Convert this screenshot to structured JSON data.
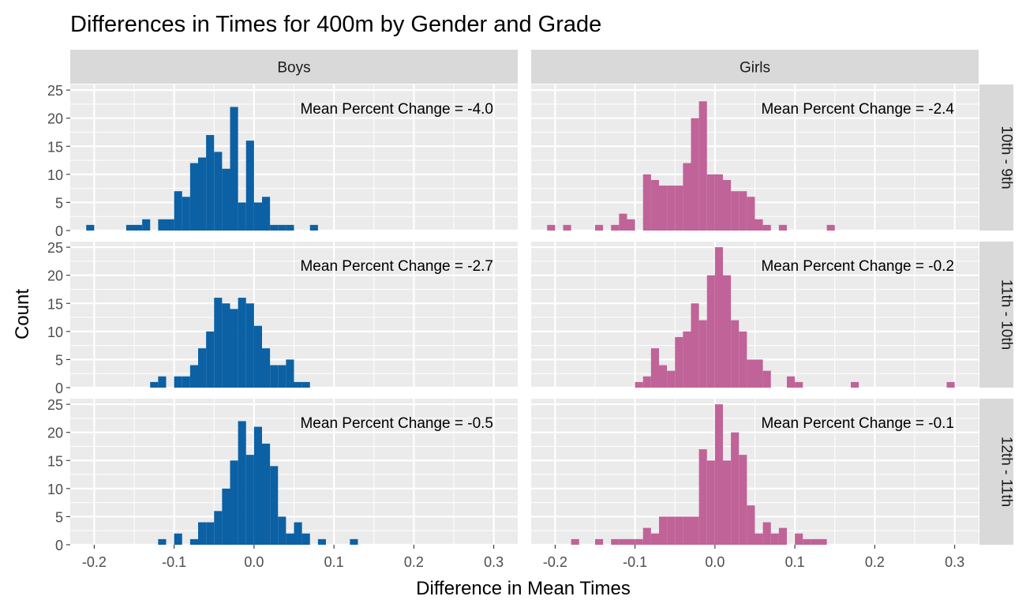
{
  "chart_data": {
    "type": "bar",
    "subtype": "faceted-histogram",
    "title": "Differences in Times for 400m by Gender and Grade",
    "xlabel": "Difference in Mean Times",
    "ylabel": "Count",
    "xlim": [
      -0.23,
      0.33
    ],
    "ylim": [
      0,
      26
    ],
    "x_ticks": [
      -0.2,
      -0.1,
      0.0,
      0.1,
      0.2,
      0.3
    ],
    "x_tick_labels": [
      "-0.2",
      "-0.1",
      "0.0",
      "0.1",
      "0.2",
      "0.3"
    ],
    "y_ticks": [
      0,
      5,
      10,
      15,
      20,
      25
    ],
    "y_tick_labels": [
      "0",
      "5",
      "10",
      "15",
      "20",
      "25"
    ],
    "bin_width": 0.01,
    "grid": true,
    "legend": "none",
    "columns": [
      "Boys",
      "Girls"
    ],
    "rows": [
      "10th - 9th",
      "11th - 10th",
      "12th - 11th"
    ],
    "colors": {
      "Boys": "#0B61A4",
      "Girls": "#C06398"
    },
    "panels": [
      {
        "column": "Boys",
        "row": "10th - 9th",
        "annotation": "Mean Percent Change = -4.0",
        "bins": [
          [
            -0.205,
            1
          ],
          [
            -0.155,
            1
          ],
          [
            -0.145,
            1
          ],
          [
            -0.135,
            2
          ],
          [
            -0.115,
            2
          ],
          [
            -0.105,
            2
          ],
          [
            -0.095,
            7
          ],
          [
            -0.085,
            6
          ],
          [
            -0.075,
            12
          ],
          [
            -0.065,
            13
          ],
          [
            -0.055,
            17
          ],
          [
            -0.045,
            14
          ],
          [
            -0.035,
            11
          ],
          [
            -0.025,
            22
          ],
          [
            -0.015,
            5
          ],
          [
            -0.005,
            16
          ],
          [
            0.005,
            5
          ],
          [
            0.015,
            6
          ],
          [
            0.025,
            1
          ],
          [
            0.035,
            1
          ],
          [
            0.045,
            1
          ],
          [
            0.075,
            1
          ]
        ]
      },
      {
        "column": "Girls",
        "row": "10th - 9th",
        "annotation": "Mean Percent Change = -2.4",
        "bins": [
          [
            -0.205,
            1
          ],
          [
            -0.185,
            1
          ],
          [
            -0.145,
            1
          ],
          [
            -0.125,
            1
          ],
          [
            -0.115,
            3
          ],
          [
            -0.105,
            2
          ],
          [
            -0.085,
            10
          ],
          [
            -0.075,
            9
          ],
          [
            -0.065,
            8
          ],
          [
            -0.055,
            8
          ],
          [
            -0.045,
            8
          ],
          [
            -0.035,
            12
          ],
          [
            -0.025,
            20
          ],
          [
            -0.015,
            23
          ],
          [
            -0.005,
            10
          ],
          [
            0.005,
            10
          ],
          [
            0.015,
            9
          ],
          [
            0.025,
            7
          ],
          [
            0.035,
            7
          ],
          [
            0.045,
            6
          ],
          [
            0.055,
            2
          ],
          [
            0.065,
            1
          ],
          [
            0.085,
            1
          ],
          [
            0.145,
            1
          ]
        ]
      },
      {
        "column": "Boys",
        "row": "11th - 10th",
        "annotation": "Mean Percent Change = -2.7",
        "bins": [
          [
            -0.125,
            1
          ],
          [
            -0.115,
            2
          ],
          [
            -0.095,
            2
          ],
          [
            -0.085,
            2
          ],
          [
            -0.075,
            4
          ],
          [
            -0.065,
            7
          ],
          [
            -0.055,
            10
          ],
          [
            -0.045,
            16
          ],
          [
            -0.035,
            15
          ],
          [
            -0.025,
            14
          ],
          [
            -0.015,
            16
          ],
          [
            -0.005,
            15
          ],
          [
            0.005,
            11
          ],
          [
            0.015,
            7
          ],
          [
            0.025,
            4
          ],
          [
            0.035,
            4
          ],
          [
            0.045,
            5
          ],
          [
            0.055,
            1
          ],
          [
            0.065,
            1
          ]
        ]
      },
      {
        "column": "Girls",
        "row": "11th - 10th",
        "annotation": "Mean Percent Change = -0.2",
        "bins": [
          [
            -0.095,
            1
          ],
          [
            -0.085,
            2
          ],
          [
            -0.075,
            7
          ],
          [
            -0.065,
            4
          ],
          [
            -0.055,
            3
          ],
          [
            -0.045,
            9
          ],
          [
            -0.035,
            10
          ],
          [
            -0.025,
            15
          ],
          [
            -0.015,
            12
          ],
          [
            -0.005,
            20
          ],
          [
            0.005,
            25
          ],
          [
            0.015,
            20
          ],
          [
            0.025,
            12
          ],
          [
            0.035,
            10
          ],
          [
            0.045,
            5
          ],
          [
            0.055,
            5
          ],
          [
            0.065,
            3
          ],
          [
            0.095,
            2
          ],
          [
            0.105,
            1
          ],
          [
            0.175,
            1
          ],
          [
            0.295,
            1
          ]
        ]
      },
      {
        "column": "Boys",
        "row": "12th - 11th",
        "annotation": "Mean Percent Change = -0.5",
        "bins": [
          [
            -0.115,
            1
          ],
          [
            -0.095,
            2
          ],
          [
            -0.075,
            1
          ],
          [
            -0.065,
            4
          ],
          [
            -0.055,
            4
          ],
          [
            -0.045,
            6
          ],
          [
            -0.035,
            10
          ],
          [
            -0.025,
            15
          ],
          [
            -0.015,
            22
          ],
          [
            -0.005,
            16
          ],
          [
            0.005,
            21
          ],
          [
            0.015,
            18
          ],
          [
            0.025,
            14
          ],
          [
            0.035,
            5
          ],
          [
            0.045,
            2
          ],
          [
            0.055,
            4
          ],
          [
            0.065,
            2
          ],
          [
            0.085,
            1
          ],
          [
            0.125,
            1
          ]
        ]
      },
      {
        "column": "Girls",
        "row": "12th - 11th",
        "annotation": "Mean Percent Change = -0.1",
        "bins": [
          [
            -0.175,
            1
          ],
          [
            -0.145,
            1
          ],
          [
            -0.125,
            1
          ],
          [
            -0.115,
            1
          ],
          [
            -0.105,
            1
          ],
          [
            -0.095,
            1
          ],
          [
            -0.085,
            3
          ],
          [
            -0.075,
            2
          ],
          [
            -0.065,
            5
          ],
          [
            -0.055,
            5
          ],
          [
            -0.045,
            5
          ],
          [
            -0.035,
            5
          ],
          [
            -0.025,
            5
          ],
          [
            -0.015,
            17
          ],
          [
            -0.005,
            15
          ],
          [
            0.005,
            25
          ],
          [
            0.015,
            15
          ],
          [
            0.025,
            20
          ],
          [
            0.035,
            16
          ],
          [
            0.045,
            7
          ],
          [
            0.055,
            2
          ],
          [
            0.065,
            4
          ],
          [
            0.075,
            2
          ],
          [
            0.085,
            3
          ],
          [
            0.105,
            2
          ],
          [
            0.115,
            1
          ],
          [
            0.125,
            1
          ],
          [
            0.135,
            1
          ]
        ]
      }
    ]
  }
}
